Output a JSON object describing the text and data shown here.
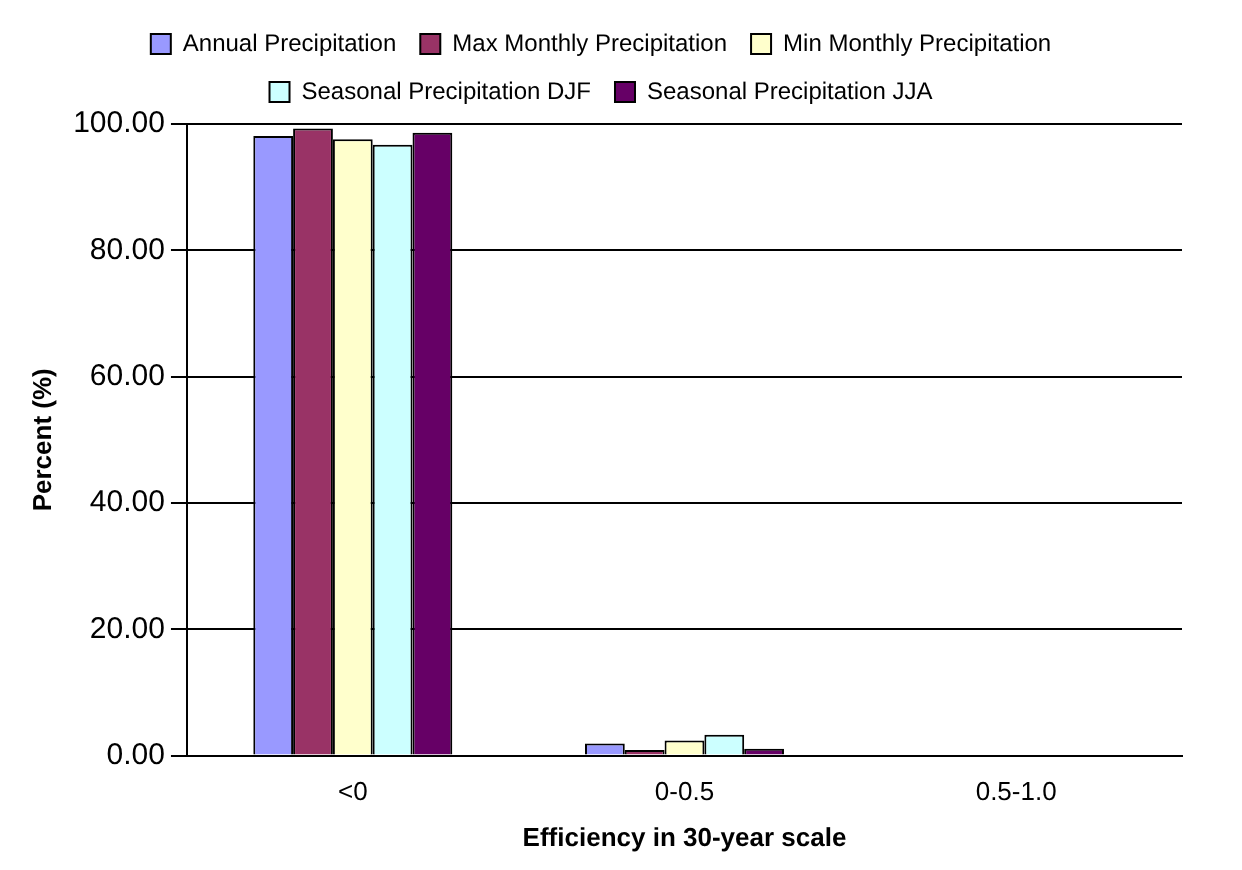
{
  "chart_data": {
    "type": "bar",
    "xlabel": "Efficiency in 30-year scale",
    "ylabel": "Percent (%)",
    "categories": [
      "<0",
      "0-0.5",
      "0.5-1.0"
    ],
    "series": [
      {
        "name": "Annual Precipitation",
        "color": "#9999ff",
        "values": [
          98.1,
          1.9,
          0
        ]
      },
      {
        "name": "Max Monthly Precipitation",
        "color": "#993366",
        "values": [
          99.3,
          0.9,
          0
        ]
      },
      {
        "name": "Min Monthly Precipitation",
        "color": "#ffffcc",
        "values": [
          97.6,
          2.4,
          0
        ]
      },
      {
        "name": "Seasonal Precipitation DJF",
        "color": "#ccffff",
        "values": [
          96.7,
          3.3,
          0
        ]
      },
      {
        "name": "Seasonal Precipitation JJA",
        "color": "#660066",
        "values": [
          98.6,
          1.1,
          0
        ]
      }
    ],
    "ylim": [
      0,
      100
    ],
    "yticks": [
      {
        "value": 0,
        "label": "0.00"
      },
      {
        "value": 20,
        "label": "20.00"
      },
      {
        "value": 40,
        "label": "40.00"
      },
      {
        "value": 60,
        "label": "60.00"
      },
      {
        "value": 80,
        "label": "80.00"
      },
      {
        "value": 100,
        "label": "100.00"
      }
    ],
    "grid": "y",
    "legend": "top"
  }
}
